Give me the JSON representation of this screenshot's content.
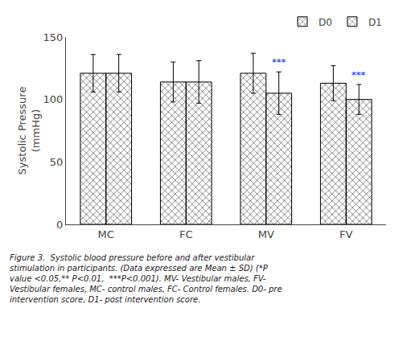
{
  "chart_data": {
    "type": "bar",
    "categories": [
      "MC",
      "FC",
      "MV",
      "FV"
    ],
    "series": [
      {
        "name": "D0",
        "color": "#c8c8c8",
        "values": [
          121,
          114,
          121,
          113
        ],
        "errors": [
          15,
          16,
          16,
          14
        ]
      },
      {
        "name": "D1",
        "color": "white",
        "values": [
          121,
          114,
          105,
          100
        ],
        "errors": [
          15,
          17,
          17,
          12
        ]
      }
    ],
    "ylabel": "Systolic Pressure\n(mmHg)",
    "ylim": [
      0,
      150
    ],
    "yticks": [
      0,
      50,
      100,
      150
    ],
    "grid": false,
    "legend": "upper right",
    "annotations": [
      {
        "category": "MV",
        "series": "D1",
        "text": "***",
        "color": "#3355FF"
      },
      {
        "category": "FV",
        "series": "D1",
        "text": "***",
        "color": "#3355FF"
      }
    ],
    "caption": "Figure 3.  Systolic blood pressure before and after vestibular\nstimulation in participants. (Data expressed are Mean ± SD) (*P\nvalue <0.05,** P<0.01,  ***P<0.001). MV- Vestibular males, FV-\nVestibular females, MC- control males, FC- Control females. D0- pre\nintervention score, D1- post intervention score."
  }
}
